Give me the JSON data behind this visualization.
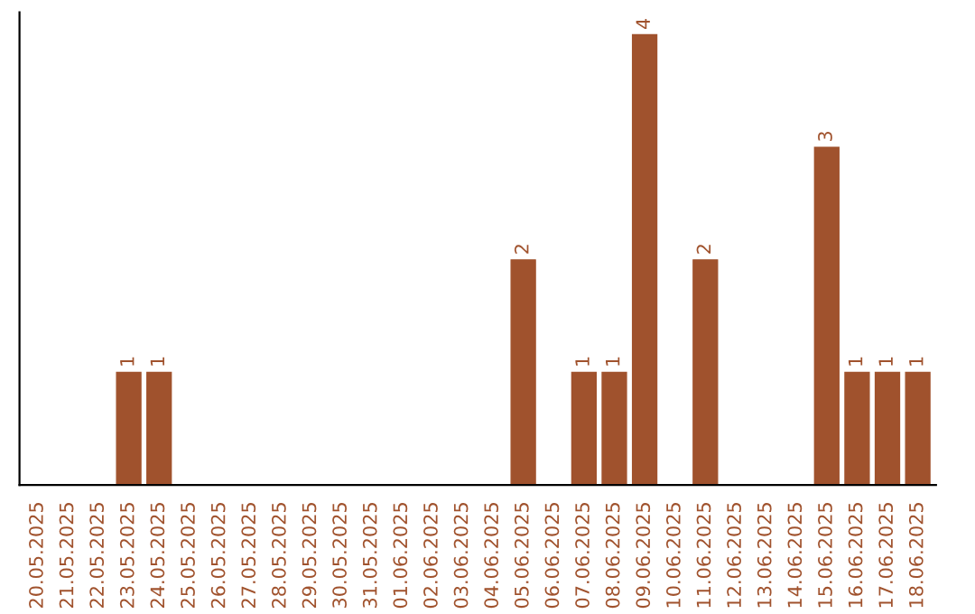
{
  "chart_data": {
    "type": "bar",
    "categories": [
      "20.05.2025",
      "21.05.2025",
      "22.05.2025",
      "23.05.2025",
      "24.05.2025",
      "25.05.2025",
      "26.05.2025",
      "27.05.2025",
      "28.05.2025",
      "29.05.2025",
      "30.05.2025",
      "31.05.2025",
      "01.06.2025",
      "02.06.2025",
      "03.06.2025",
      "04.06.2025",
      "05.06.2025",
      "06.06.2025",
      "07.06.2025",
      "08.06.2025",
      "09.06.2025",
      "10.06.2025",
      "11.06.2025",
      "12.06.2025",
      "13.06.2025",
      "14.06.2025",
      "15.06.2025",
      "16.06.2025",
      "17.06.2025",
      "18.06.2025"
    ],
    "values": [
      0,
      0,
      0,
      1,
      1,
      0,
      0,
      0,
      0,
      0,
      0,
      0,
      0,
      0,
      0,
      0,
      2,
      0,
      1,
      1,
      4,
      0,
      2,
      0,
      0,
      0,
      3,
      1,
      1,
      1
    ],
    "value_labels": [
      null,
      null,
      null,
      "1",
      "1",
      null,
      null,
      null,
      null,
      null,
      null,
      null,
      null,
      null,
      null,
      null,
      "2",
      null,
      "1",
      "1",
      "4",
      null,
      "2",
      null,
      null,
      null,
      "3",
      "1",
      "1",
      "1"
    ],
    "color": "#a0522d",
    "tick_labels": "x",
    "grid": false,
    "legend": false
  }
}
